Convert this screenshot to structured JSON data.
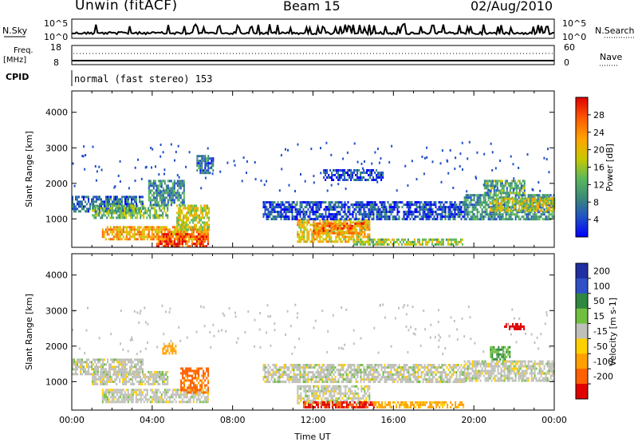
{
  "header": {
    "site": "Unwin (fitACF)",
    "beam": "Beam 15",
    "date": "02/Aug/2010"
  },
  "status_panels": {
    "nsky_label": "N.Sky",
    "nsky_ticks": [
      "10^5",
      "10^0"
    ],
    "nsearch_label": "N.Search",
    "nsearch_ticks": [
      "10^5",
      "10^0"
    ],
    "freq_label": "Freq.",
    "freq_unit": "[MHz]",
    "freq_ticks": [
      "18",
      "8"
    ],
    "nave_label": "Nave",
    "nave_ticks": [
      "60",
      "0"
    ],
    "cpid_label": "CPID",
    "cpid_text": "normal (fast stereo) 153"
  },
  "colors": {
    "power_scale": [
      "#0000ff",
      "#2050c8",
      "#3a8a78",
      "#5cb85c",
      "#c8c800",
      "#ffa500",
      "#ff6000",
      "#e00000"
    ],
    "velocity_scale": [
      "#2030a0",
      "#3050c8",
      "#308840",
      "#70c040",
      "#c8c8c0",
      "#ffd000",
      "#ffa000",
      "#ff6000",
      "#e00000"
    ],
    "ground_scatter": "#c0c0bb"
  },
  "chart_data": [
    {
      "type": "heatmap",
      "panel": "power",
      "ylabel": "Slant Range [km]",
      "yticks": [
        "4000",
        "3000",
        "2000",
        "1000"
      ],
      "ylim": [
        200,
        4600
      ],
      "xlim": [
        "00:00",
        "24:00"
      ],
      "colorbar_label": "Power [dB]",
      "colorbar_ticks": [
        "28",
        "24",
        "20",
        "16",
        "12",
        "8",
        "4"
      ],
      "colorbar_range": [
        0,
        32
      ],
      "regions": [
        {
          "t0": 0.0,
          "t1": 3.5,
          "r0": 1200,
          "r1": 1650,
          "value": 8
        },
        {
          "t0": 1.0,
          "t1": 4.8,
          "r0": 1000,
          "r1": 1400,
          "value": 14
        },
        {
          "t0": 3.8,
          "t1": 5.6,
          "r0": 1400,
          "r1": 2100,
          "value": 10
        },
        {
          "t0": 1.5,
          "t1": 6.8,
          "r0": 400,
          "r1": 800,
          "value": 22
        },
        {
          "t0": 4.2,
          "t1": 6.8,
          "r0": 250,
          "r1": 600,
          "value": 28
        },
        {
          "t0": 5.2,
          "t1": 6.8,
          "r0": 700,
          "r1": 1400,
          "value": 18
        },
        {
          "t0": 6.2,
          "t1": 7.0,
          "r0": 2300,
          "r1": 2800,
          "value": 8
        },
        {
          "t0": 11.2,
          "t1": 14.8,
          "r0": 350,
          "r1": 1000,
          "value": 20
        },
        {
          "t0": 12.0,
          "t1": 14.5,
          "r0": 600,
          "r1": 900,
          "value": 24
        },
        {
          "t0": 9.5,
          "t1": 19.5,
          "r0": 1000,
          "r1": 1500,
          "value": 6
        },
        {
          "t0": 12.5,
          "t1": 15.5,
          "r0": 2100,
          "r1": 2400,
          "value": 6
        },
        {
          "t0": 14.0,
          "t1": 19.5,
          "r0": 250,
          "r1": 450,
          "value": 16
        },
        {
          "t0": 19.5,
          "t1": 24.0,
          "r0": 1000,
          "r1": 1700,
          "value": 10
        },
        {
          "t0": 20.8,
          "t1": 24.0,
          "r0": 1250,
          "r1": 1600,
          "value": 18
        },
        {
          "t0": 20.5,
          "t1": 22.5,
          "r0": 1700,
          "r1": 2100,
          "value": 12
        }
      ]
    },
    {
      "type": "heatmap",
      "panel": "velocity",
      "ylabel": "Slant Range [km]",
      "yticks": [
        "4000",
        "3000",
        "2000",
        "1000"
      ],
      "ylim": [
        200,
        4600
      ],
      "xlim": [
        "00:00",
        "24:00"
      ],
      "xticks": [
        "00:00",
        "04:00",
        "08:00",
        "12:00",
        "16:00",
        "20:00",
        "00:00"
      ],
      "xlabel": "Time UT",
      "colorbar_label": "Velocity [m s-1]",
      "colorbar_ticks": [
        "200",
        "100",
        "50",
        "15",
        "-15",
        "-50",
        "-100",
        "-200"
      ],
      "colorbar_range": [
        -250,
        250
      ],
      "regions": [
        {
          "t0": 0.0,
          "t1": 3.5,
          "r0": 1200,
          "r1": 1650,
          "value": 0
        },
        {
          "t0": 1.0,
          "t1": 4.8,
          "r0": 900,
          "r1": 1300,
          "value": 0
        },
        {
          "t0": 1.5,
          "t1": 6.8,
          "r0": 400,
          "r1": 800,
          "value": 0
        },
        {
          "t0": 5.4,
          "t1": 6.8,
          "r0": 700,
          "r1": 1400,
          "value": -110
        },
        {
          "t0": 4.5,
          "t1": 5.2,
          "r0": 1800,
          "r1": 2100,
          "value": -80
        },
        {
          "t0": 9.5,
          "t1": 19.5,
          "r0": 1000,
          "r1": 1500,
          "value": 0
        },
        {
          "t0": 11.2,
          "t1": 14.8,
          "r0": 400,
          "r1": 900,
          "value": 0
        },
        {
          "t0": 11.5,
          "t1": 15.0,
          "r0": 250,
          "r1": 450,
          "value": -160
        },
        {
          "t0": 15.0,
          "t1": 19.5,
          "r0": 250,
          "r1": 450,
          "value": -60
        },
        {
          "t0": 19.5,
          "t1": 24.0,
          "r0": 1000,
          "r1": 1600,
          "value": 0
        },
        {
          "t0": 20.8,
          "t1": 21.8,
          "r0": 1600,
          "r1": 2000,
          "value": 40
        },
        {
          "t0": 21.5,
          "t1": 22.5,
          "r0": 2450,
          "r1": 2650,
          "value": -220
        }
      ]
    }
  ]
}
